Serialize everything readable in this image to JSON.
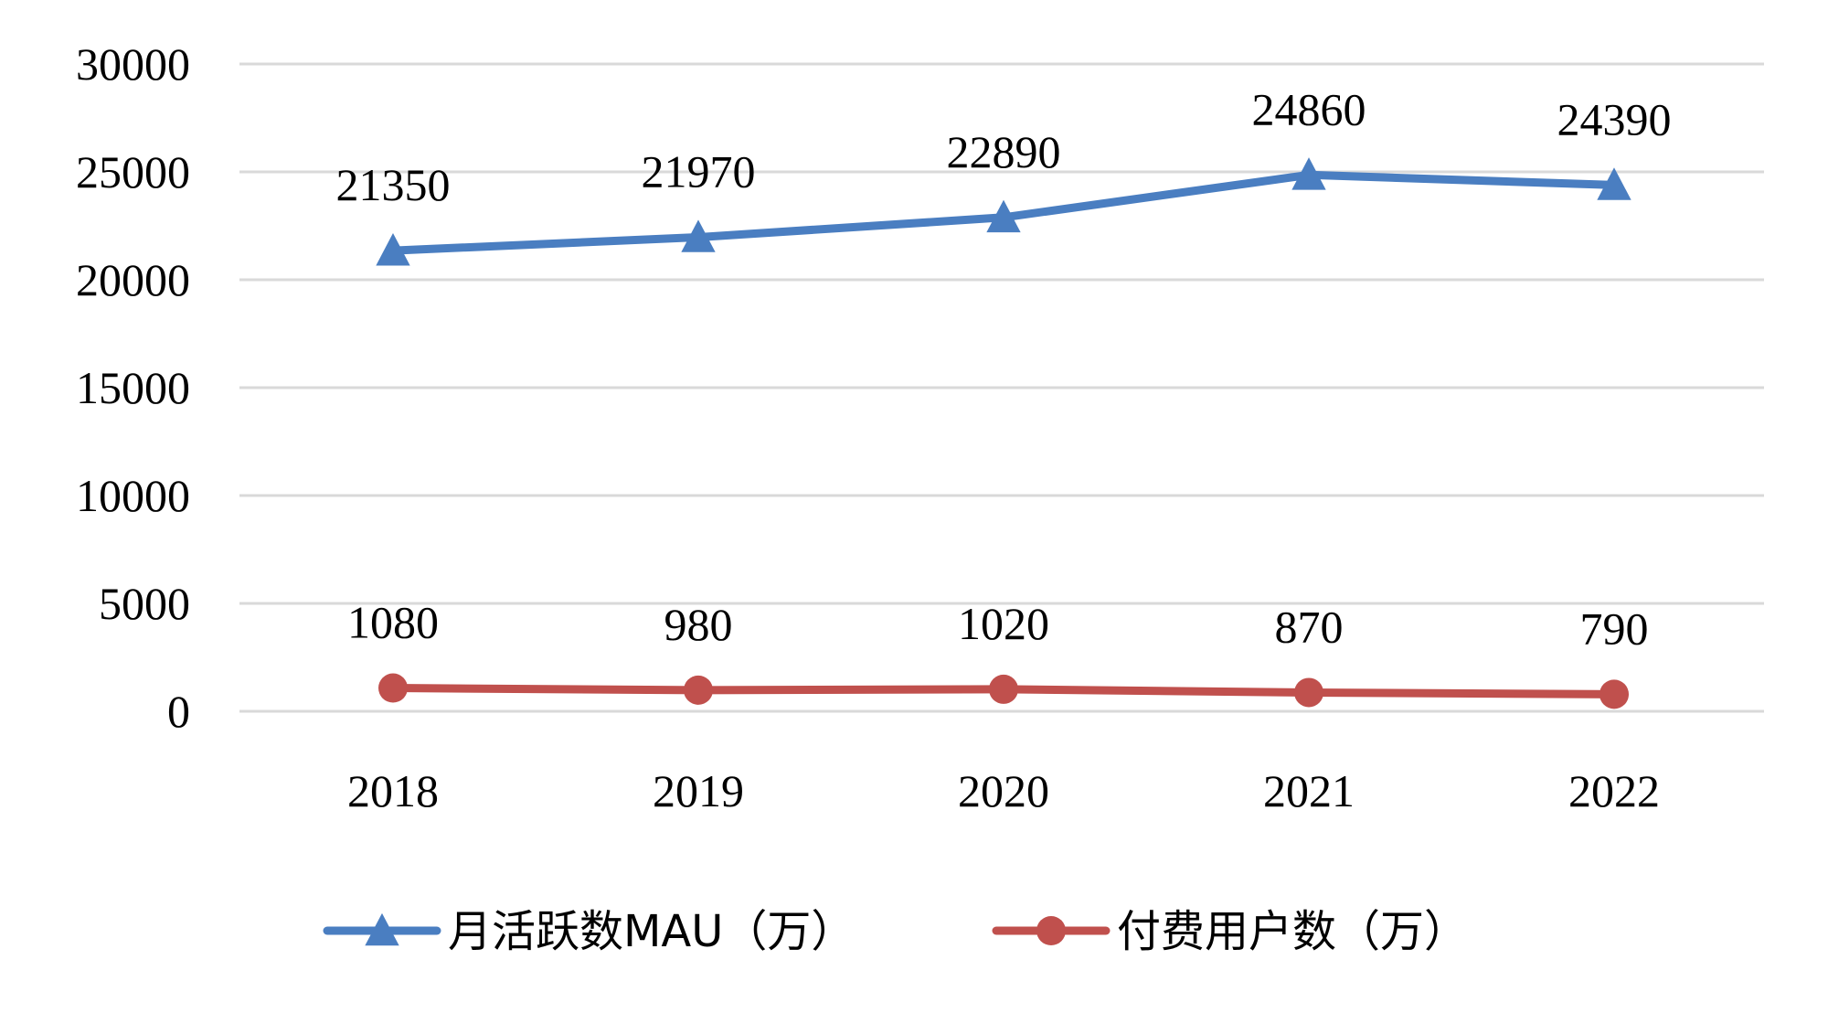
{
  "chart_data": {
    "type": "line",
    "categories": [
      "2018",
      "2019",
      "2020",
      "2021",
      "2022"
    ],
    "ylim": [
      0,
      30000
    ],
    "yticks": [
      0,
      5000,
      10000,
      15000,
      20000,
      25000,
      30000
    ],
    "grid": true,
    "legend_position": "bottom",
    "series": [
      {
        "name": "月活跃数MAU（万）",
        "values": [
          21350,
          21970,
          22890,
          24860,
          24390
        ],
        "color": "#4A7EC1",
        "marker": "triangle"
      },
      {
        "name": "付费用户数（万）",
        "values": [
          1080,
          980,
          1020,
          870,
          790
        ],
        "color": "#C0504D",
        "marker": "circle"
      }
    ]
  }
}
